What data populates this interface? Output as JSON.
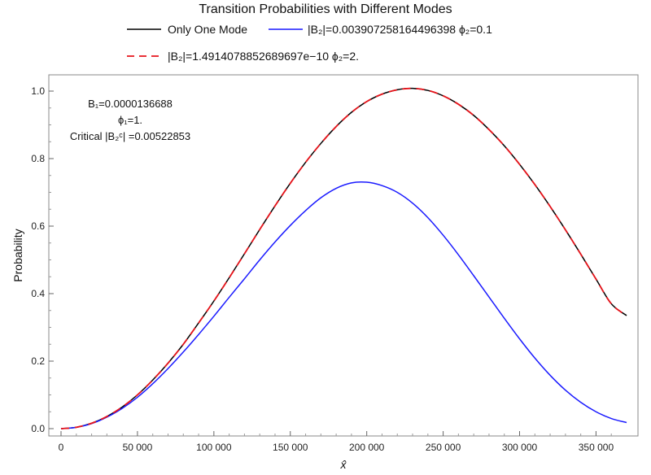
{
  "chart_data": {
    "type": "line",
    "title": "Transition Probabilities with Different Modes",
    "xlabel": "x̂",
    "ylabel": "Probability",
    "xlim": [
      0,
      370000
    ],
    "ylim": [
      0,
      1.02
    ],
    "xticks": [
      0,
      50000,
      100000,
      150000,
      200000,
      250000,
      300000,
      350000
    ],
    "xtick_labels": [
      "0",
      "50 000",
      "100 000",
      "150 000",
      "200 000",
      "250 000",
      "300 000",
      "350 000"
    ],
    "yticks": [
      0.0,
      0.2,
      0.4,
      0.6,
      0.8,
      1.0
    ],
    "ytick_labels": [
      "0.0",
      "0.2",
      "0.4",
      "0.6",
      "0.8",
      "1.0"
    ],
    "grid": false,
    "legend_position": "top",
    "annotations": {
      "b1": "B₁=0.0000136688",
      "phi1": "ϕ₁=1.",
      "critical": "Critical |B₂ᶜ| =0.00522853"
    },
    "series": [
      {
        "name": "Only One Mode",
        "color": "#000000",
        "style": "solid",
        "x": [
          0,
          10000,
          20000,
          30000,
          40000,
          50000,
          60000,
          70000,
          80000,
          90000,
          100000,
          110000,
          120000,
          130000,
          140000,
          150000,
          160000,
          170000,
          180000,
          190000,
          200000,
          210000,
          220000,
          230000,
          240000,
          250000,
          260000,
          270000,
          280000,
          290000,
          300000,
          310000,
          320000,
          330000,
          340000,
          350000,
          360000,
          370000
        ],
        "y": [
          0.0,
          0.004,
          0.016,
          0.036,
          0.064,
          0.1,
          0.144,
          0.194,
          0.25,
          0.313,
          0.378,
          0.447,
          0.518,
          0.59,
          0.66,
          0.727,
          0.789,
          0.845,
          0.895,
          0.937,
          0.969,
          0.991,
          1.004,
          1.008,
          1.002,
          0.986,
          0.961,
          0.928,
          0.886,
          0.838,
          0.783,
          0.723,
          0.658,
          0.589,
          0.517,
          0.443,
          0.37,
          0.335
        ]
      },
      {
        "name": "|B₂|=0.003907258164496398 ϕ₂=0.1",
        "color": "#1a1aff",
        "style": "solid",
        "x": [
          0,
          10000,
          20000,
          30000,
          40000,
          50000,
          60000,
          70000,
          80000,
          90000,
          100000,
          110000,
          120000,
          130000,
          140000,
          150000,
          160000,
          170000,
          180000,
          190000,
          200000,
          210000,
          220000,
          230000,
          240000,
          250000,
          260000,
          270000,
          280000,
          290000,
          300000,
          310000,
          320000,
          330000,
          340000,
          350000,
          360000,
          370000
        ],
        "y": [
          0.0,
          0.004,
          0.015,
          0.034,
          0.06,
          0.093,
          0.133,
          0.178,
          0.227,
          0.279,
          0.333,
          0.389,
          0.444,
          0.5,
          0.553,
          0.602,
          0.646,
          0.684,
          0.712,
          0.728,
          0.73,
          0.72,
          0.7,
          0.668,
          0.625,
          0.573,
          0.515,
          0.453,
          0.39,
          0.327,
          0.266,
          0.209,
          0.158,
          0.114,
          0.078,
          0.05,
          0.03,
          0.018
        ]
      },
      {
        "name": "|B₂|=1.4914078852689697e−10 ϕ₂=2.",
        "color": "#e8141b",
        "style": "dashed",
        "x": [
          0,
          10000,
          20000,
          30000,
          40000,
          50000,
          60000,
          70000,
          80000,
          90000,
          100000,
          110000,
          120000,
          130000,
          140000,
          150000,
          160000,
          170000,
          180000,
          190000,
          200000,
          210000,
          220000,
          230000,
          240000,
          250000,
          260000,
          270000,
          280000,
          290000,
          300000,
          310000,
          320000,
          330000,
          340000,
          350000,
          360000,
          370000
        ],
        "y": [
          0.0,
          0.004,
          0.016,
          0.036,
          0.064,
          0.1,
          0.144,
          0.194,
          0.25,
          0.313,
          0.378,
          0.447,
          0.518,
          0.59,
          0.66,
          0.727,
          0.789,
          0.845,
          0.895,
          0.937,
          0.969,
          0.991,
          1.004,
          1.008,
          1.002,
          0.986,
          0.961,
          0.928,
          0.886,
          0.838,
          0.783,
          0.723,
          0.658,
          0.589,
          0.517,
          0.443,
          0.37,
          0.335
        ]
      }
    ]
  }
}
